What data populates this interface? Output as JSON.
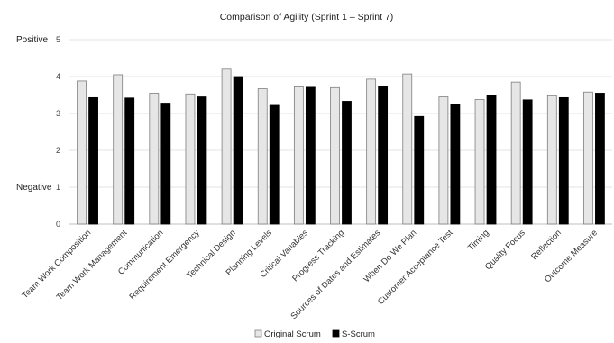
{
  "chart_data": {
    "type": "bar",
    "title": "Comparison of Agility (Sprint 1 – Sprint 7)",
    "xlabel": "",
    "ylabel": "",
    "ylim": [
      0,
      5
    ],
    "yticks": [
      0,
      1,
      2,
      3,
      4,
      5
    ],
    "grid": true,
    "legend_position": "bottom",
    "annotations": [
      {
        "text": "Positive",
        "y": 5
      },
      {
        "text": "Negative",
        "y": 1
      }
    ],
    "categories": [
      "Team Work Composition",
      "Team Work Management",
      "Communication",
      "Requirement Emergency",
      "Technical Design",
      "Planning Levels",
      "Critical Variables",
      "Progress Tracking",
      "Sources of Dates and Estimates",
      "When Do We Plan",
      "Customer Acceptance Test",
      "Timing",
      "Quality Focus",
      "Reflection",
      "Outcome Measure"
    ],
    "series": [
      {
        "name": "Original Scrum",
        "color": "#e6e6e6",
        "values": [
          3.88,
          4.05,
          3.55,
          3.53,
          4.2,
          3.67,
          3.72,
          3.7,
          3.93,
          4.07,
          3.45,
          3.38,
          3.85,
          3.48,
          3.58
        ]
      },
      {
        "name": "S-Scrum",
        "color": "#000000",
        "values": [
          3.43,
          3.42,
          3.28,
          3.45,
          4.0,
          3.22,
          3.71,
          3.33,
          3.73,
          2.92,
          3.25,
          3.48,
          3.37,
          3.43,
          3.55
        ]
      }
    ]
  }
}
